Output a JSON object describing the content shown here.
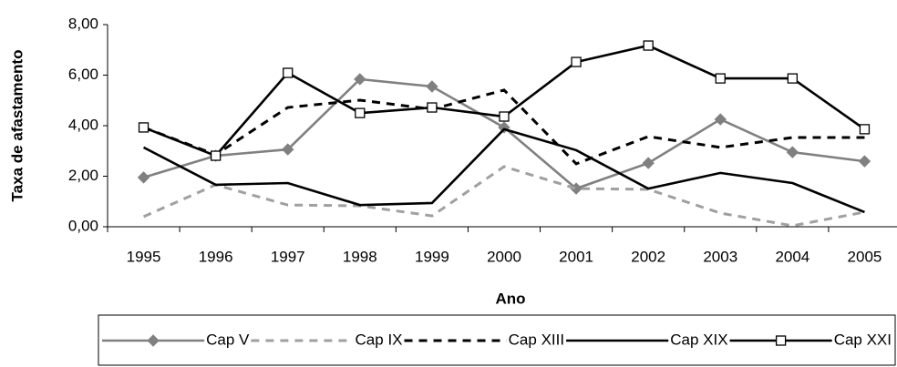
{
  "chart_data": {
    "type": "line",
    "x_label": "Ano",
    "y_label": "Taxa de afastamento",
    "categories": [
      "1995",
      "1996",
      "1997",
      "1998",
      "1999",
      "2000",
      "2001",
      "2002",
      "2003",
      "2004",
      "2005"
    ],
    "ylim": [
      0,
      8
    ],
    "yticks": [
      {
        "value": 0,
        "label": "0,00"
      },
      {
        "value": 2,
        "label": "2,00"
      },
      {
        "value": 4,
        "label": "4,00"
      },
      {
        "value": 6,
        "label": "6,00"
      },
      {
        "value": 8,
        "label": "8,00"
      }
    ],
    "grid": false,
    "legend": "bottom",
    "series": [
      {
        "name": "Cap V",
        "color": "#808080",
        "dash": false,
        "marker": "diamond",
        "values": [
          1.95,
          2.81,
          3.06,
          5.84,
          5.55,
          3.93,
          1.51,
          2.52,
          4.25,
          2.95,
          2.59
        ]
      },
      {
        "name": "Cap IX",
        "color": "#a0a0a0",
        "dash": true,
        "marker": null,
        "values": [
          0.4,
          1.66,
          0.86,
          0.83,
          0.43,
          2.38,
          1.51,
          1.48,
          0.54,
          0.04,
          0.58
        ]
      },
      {
        "name": "Cap XIII",
        "color": "#000000",
        "dash": true,
        "marker": null,
        "values": [
          3.93,
          2.85,
          4.72,
          5.01,
          4.65,
          5.41,
          2.49,
          3.57,
          3.14,
          3.53,
          3.53
        ]
      },
      {
        "name": "Cap XIX",
        "color": "#000000",
        "dash": false,
        "marker": null,
        "values": [
          3.14,
          1.66,
          1.73,
          0.86,
          0.94,
          3.86,
          3.03,
          1.51,
          2.13,
          1.73,
          0.58
        ]
      },
      {
        "name": "Cap XXI",
        "color": "#000000",
        "dash": false,
        "marker": "square",
        "values": [
          3.93,
          2.81,
          6.09,
          4.5,
          4.72,
          4.36,
          6.52,
          7.17,
          5.87,
          5.87,
          3.86
        ]
      }
    ]
  }
}
